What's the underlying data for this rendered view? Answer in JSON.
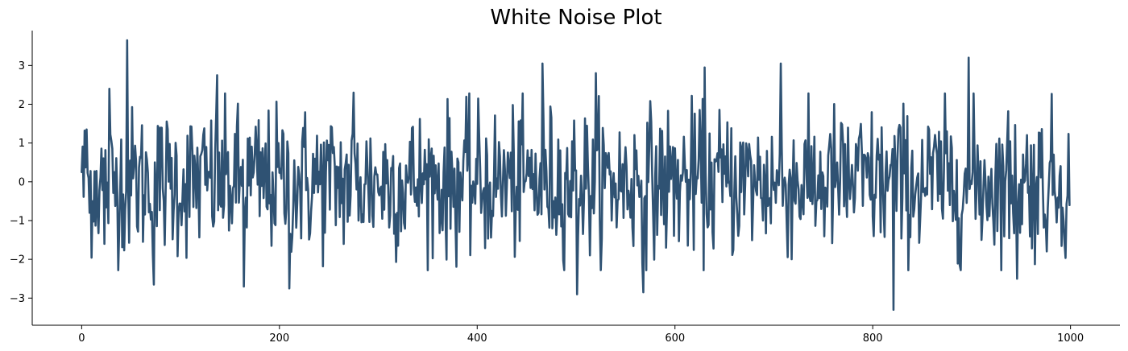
{
  "chart_data": {
    "type": "line",
    "title": "White Noise Plot",
    "xlabel": "",
    "ylabel": "",
    "xlim": [
      -50,
      1050
    ],
    "ylim": [
      -3.7,
      3.9
    ],
    "xticks": [
      0,
      200,
      400,
      600,
      800,
      1000
    ],
    "xtick_labels": [
      "0",
      "200",
      "400",
      "600",
      "800",
      "1000"
    ],
    "yticks": [
      -3,
      -2,
      -1,
      0,
      1,
      2,
      3
    ],
    "ytick_labels": [
      "−3",
      "−2",
      "−1",
      "0",
      "1",
      "2",
      "3"
    ],
    "grid": false,
    "legend": "none",
    "series": [
      {
        "color": "#2f5273",
        "x_start": 0,
        "x_step": 1,
        "n_points": 1000,
        "distribution": "gaussian white noise, mean 0, std 1",
        "notable_points": [
          {
            "x": 0,
            "y": 0.25
          },
          {
            "x": 5,
            "y": 1.35
          },
          {
            "x": 8,
            "y": -0.8
          },
          {
            "x": 23,
            "y": -1.6
          },
          {
            "x": 28,
            "y": 2.4
          },
          {
            "x": 46,
            "y": 3.65
          },
          {
            "x": 73,
            "y": -2.65
          },
          {
            "x": 137,
            "y": 2.75
          },
          {
            "x": 164,
            "y": -2.7
          },
          {
            "x": 210,
            "y": -2.75
          },
          {
            "x": 275,
            "y": 2.3
          },
          {
            "x": 466,
            "y": 3.05
          },
          {
            "x": 501,
            "y": -2.9
          },
          {
            "x": 520,
            "y": 2.8
          },
          {
            "x": 568,
            "y": -2.85
          },
          {
            "x": 630,
            "y": 2.95
          },
          {
            "x": 707,
            "y": 3.05
          },
          {
            "x": 821,
            "y": -3.3
          },
          {
            "x": 897,
            "y": 3.2
          },
          {
            "x": 946,
            "y": -2.5
          },
          {
            "x": 999,
            "y": -0.6
          }
        ]
      }
    ]
  }
}
